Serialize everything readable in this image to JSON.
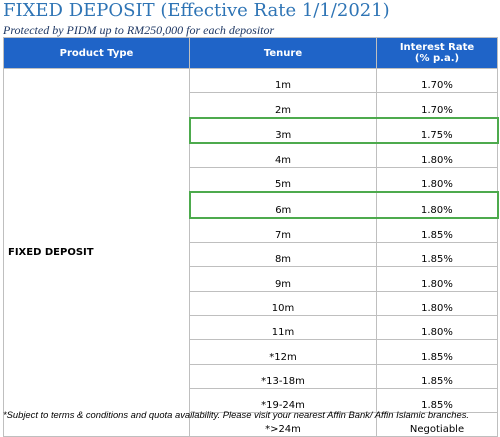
{
  "title": "FIXED DEPOSIT (Effective Rate 1/1/2021)",
  "subtitle": "Protected by PIDM up to RM250,000 for each depositor",
  "table": {
    "headers": {
      "product_type": "Product Type",
      "tenure": "Tenure",
      "interest_rate_line1": "Interest Rate",
      "interest_rate_line2": "(% p.a.)"
    },
    "product": "FIXED DEPOSIT",
    "highlight_color": "#4daa4d",
    "header_color": "#1f64c8",
    "rows": [
      {
        "tenure": "1m",
        "rate": "1.70%",
        "highlighted": false
      },
      {
        "tenure": "2m",
        "rate": "1.70%",
        "highlighted": false
      },
      {
        "tenure": "3m",
        "rate": "1.75%",
        "highlighted": true
      },
      {
        "tenure": "4m",
        "rate": "1.80%",
        "highlighted": false
      },
      {
        "tenure": "5m",
        "rate": "1.80%",
        "highlighted": false
      },
      {
        "tenure": "6m",
        "rate": "1.80%",
        "highlighted": true
      },
      {
        "tenure": "7m",
        "rate": "1.85%",
        "highlighted": false
      },
      {
        "tenure": "8m",
        "rate": "1.85%",
        "highlighted": false
      },
      {
        "tenure": "9m",
        "rate": "1.80%",
        "highlighted": false
      },
      {
        "tenure": "10m",
        "rate": "1.80%",
        "highlighted": false
      },
      {
        "tenure": "11m",
        "rate": "1.80%",
        "highlighted": false
      },
      {
        "tenure": "*12m",
        "rate": "1.85%",
        "highlighted": false
      },
      {
        "tenure": "*13-18m",
        "rate": "1.85%",
        "highlighted": false
      },
      {
        "tenure": "*19-24m",
        "rate": "1.85%",
        "highlighted": false
      },
      {
        "tenure": "*>24m",
        "rate": "Negotiable",
        "highlighted": false
      }
    ]
  },
  "footnote": "*Subject to terms & conditions and quota availability. Please visit your nearest Affin Bank/ Affin Islamic branches."
}
